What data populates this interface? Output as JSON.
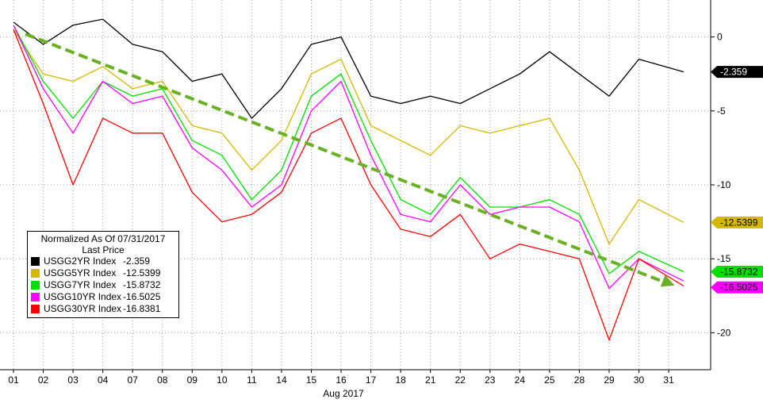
{
  "chart_data": {
    "type": "line",
    "xlabel": "Aug 2017",
    "ylabel": "",
    "ylim": [
      -22.5,
      2.5
    ],
    "yticks": [
      0,
      -5,
      -10,
      -15,
      -20
    ],
    "y_axis_position": "right",
    "grid": true,
    "legend_placement": "bottom-left",
    "legend_title": [
      "Normalized As Of 07/31/2017",
      "Last Price"
    ],
    "categories": [
      "01",
      "02",
      "03",
      "04",
      "07",
      "08",
      "09",
      "10",
      "11",
      "14",
      "15",
      "16",
      "17",
      "18",
      "21",
      "22",
      "23",
      "24",
      "25",
      "28",
      "29",
      "30",
      "31"
    ],
    "series": [
      {
        "name": "USGG2YR Index",
        "label": "-2.359",
        "color": "#000000",
        "values": [
          1.0,
          -0.5,
          0.8,
          1.2,
          -0.5,
          -1.0,
          -3.0,
          -2.5,
          -5.5,
          -3.5,
          -0.5,
          0.0,
          -4.0,
          -4.5,
          -4.0,
          -4.5,
          -3.5,
          -2.5,
          -1.0,
          -2.5,
          -4.0,
          -1.5,
          -2.359
        ]
      },
      {
        "name": "USGG5YR Index",
        "label": "-12.5399",
        "color": "#d4b800",
        "values": [
          0.5,
          -2.5,
          -3.0,
          -2.0,
          -3.5,
          -3.0,
          -6.0,
          -6.5,
          -9.0,
          -7.0,
          -2.5,
          -1.5,
          -6.0,
          -7.0,
          -8.0,
          -6.0,
          -6.5,
          -6.0,
          -5.5,
          -9.0,
          -14.0,
          -11.0,
          -12.5399
        ]
      },
      {
        "name": "USGG7YR Index",
        "label": "-15.8732",
        "color": "#00e000",
        "values": [
          0.8,
          -3.0,
          -5.5,
          -3.0,
          -4.0,
          -3.5,
          -7.0,
          -8.0,
          -11.0,
          -9.0,
          -4.0,
          -2.5,
          -7.0,
          -11.0,
          -12.0,
          -9.5,
          -11.5,
          -11.5,
          -11.0,
          -12.0,
          -16.0,
          -14.5,
          -15.8732
        ]
      },
      {
        "name": "USGG10YR Index",
        "label": "-16.5025",
        "color": "#ff00ff",
        "values": [
          0.8,
          -3.5,
          -6.5,
          -3.0,
          -4.5,
          -4.0,
          -7.5,
          -9.0,
          -11.5,
          -10.0,
          -5.0,
          -3.0,
          -8.0,
          -12.0,
          -12.5,
          -10.0,
          -12.0,
          -11.5,
          -11.5,
          -12.5,
          -17.0,
          -15.0,
          -16.5025
        ]
      },
      {
        "name": "USGG30YR Index",
        "label": "-16.8381",
        "color": "#ff0000",
        "values": [
          0.5,
          -4.5,
          -10.0,
          -5.5,
          -6.5,
          -6.5,
          -10.5,
          -12.5,
          -12.0,
          -10.5,
          -6.5,
          -5.5,
          -10.0,
          -13.0,
          -13.5,
          -12.0,
          -15.0,
          -14.0,
          -14.5,
          -15.0,
          -20.5,
          -15.0,
          -16.8381
        ]
      }
    ],
    "annotations": [
      {
        "type": "trend-arrow",
        "color": "#6ab023",
        "from": [
          0.4,
          0.2
        ],
        "to": [
          22.2,
          -16.8
        ]
      }
    ]
  }
}
